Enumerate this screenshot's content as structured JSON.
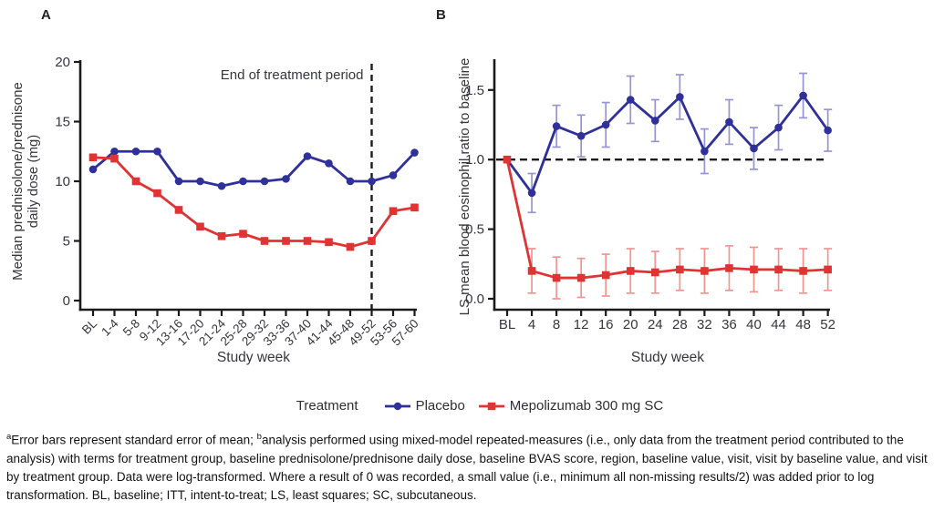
{
  "panels": {
    "a_label": "A",
    "b_label": "B"
  },
  "legend": {
    "title": "Treatment",
    "items": [
      {
        "label": "Placebo",
        "color": "#30309a",
        "marker": "circle"
      },
      {
        "label": "Mepolizumab 300 mg SC",
        "color": "#e03333",
        "marker": "square"
      }
    ]
  },
  "footnote": {
    "sup_a": "a",
    "part1": "Error bars represent standard error of mean; ",
    "sup_b": "b",
    "part2": "analysis performed using mixed-model repeated-measures (i.e., only data from the treatment period contributed to the analysis) with terms for treatment group, baseline prednisolone/prednisone daily dose, baseline BVAS score, region, baseline value, visit, visit by baseline value, and visit by treatment group. Data were log-transformed. Where a result of 0 was recorded, a small value (i.e., minimum all non-missing results/2) was added prior to log transformation. BL, baseline; ITT, intent-to-treat; LS, least squares; SC, subcutaneous."
  },
  "chart_data": [
    {
      "id": "chartA",
      "type": "line",
      "title": "",
      "xlabel": "Study week",
      "ylabel": "Median prednisolone/prednisone daily dose (mg)",
      "ylabel_lines": [
        "Median prednisolone/prednisone",
        "daily dose (mg)"
      ],
      "ylim": [
        0,
        20
      ],
      "yticks": [
        0,
        5,
        10,
        15,
        20
      ],
      "ytick_labels": [
        "0",
        "5",
        "10",
        "15",
        "20"
      ],
      "categories": [
        "BL",
        "1-4",
        "5-8",
        "9-12",
        "13-16",
        "17-20",
        "21-24",
        "25-28",
        "29-32",
        "33-36",
        "37-40",
        "41-44",
        "45-48",
        "49-52",
        "53-56",
        "57-60"
      ],
      "grid": false,
      "annotation": {
        "text": "End of treatment period",
        "vline_at_category": "49-52"
      },
      "series": [
        {
          "name": "Placebo",
          "color": "#30309a",
          "marker": "circle",
          "values": [
            11,
            12.5,
            12.5,
            12.5,
            10,
            10,
            9.6,
            10,
            10,
            10.2,
            12.1,
            11.5,
            10,
            10,
            10.5,
            12.4
          ]
        },
        {
          "name": "Mepolizumab 300 mg SC",
          "color": "#e03333",
          "marker": "square",
          "values": [
            12,
            11.9,
            10,
            9,
            7.6,
            6.2,
            5.4,
            5.6,
            5,
            5,
            5,
            4.9,
            4.5,
            5,
            7.5,
            7.8
          ]
        }
      ]
    },
    {
      "id": "chartB",
      "type": "line",
      "title": "",
      "xlabel": "Study week",
      "ylabel": "LS mean blood eosinophil ratio to baseline",
      "ylabel_lines": [
        "LS mean blood eosinophil ratio to baseline"
      ],
      "ylim": [
        0,
        1.7
      ],
      "yticks": [
        0,
        0.5,
        1,
        1.5
      ],
      "ytick_labels": [
        "0.0",
        "0.5",
        "1.0",
        "1.5"
      ],
      "categories": [
        "BL",
        "4",
        "8",
        "12",
        "16",
        "20",
        "24",
        "28",
        "32",
        "36",
        "40",
        "44",
        "48",
        "52"
      ],
      "grid": false,
      "hline_at": 1.0,
      "series": [
        {
          "name": "Placebo",
          "color": "#30309a",
          "error_color": "#9595d2",
          "marker": "circle",
          "values": [
            1.0,
            0.76,
            1.24,
            1.17,
            1.25,
            1.43,
            1.28,
            1.45,
            1.06,
            1.27,
            1.08,
            1.23,
            1.46,
            1.21
          ],
          "errors": [
            0,
            0.14,
            0.15,
            0.15,
            0.16,
            0.17,
            0.15,
            0.16,
            0.16,
            0.16,
            0.15,
            0.16,
            0.16,
            0.15
          ]
        },
        {
          "name": "Mepolizumab 300 mg SC",
          "color": "#e03333",
          "error_color": "#f29490",
          "marker": "square",
          "values": [
            1.0,
            0.2,
            0.15,
            0.15,
            0.17,
            0.2,
            0.19,
            0.21,
            0.2,
            0.22,
            0.21,
            0.21,
            0.2,
            0.21
          ],
          "errors": [
            0,
            0.16,
            0.15,
            0.14,
            0.15,
            0.16,
            0.15,
            0.15,
            0.16,
            0.16,
            0.16,
            0.15,
            0.16,
            0.15
          ]
        }
      ]
    }
  ]
}
